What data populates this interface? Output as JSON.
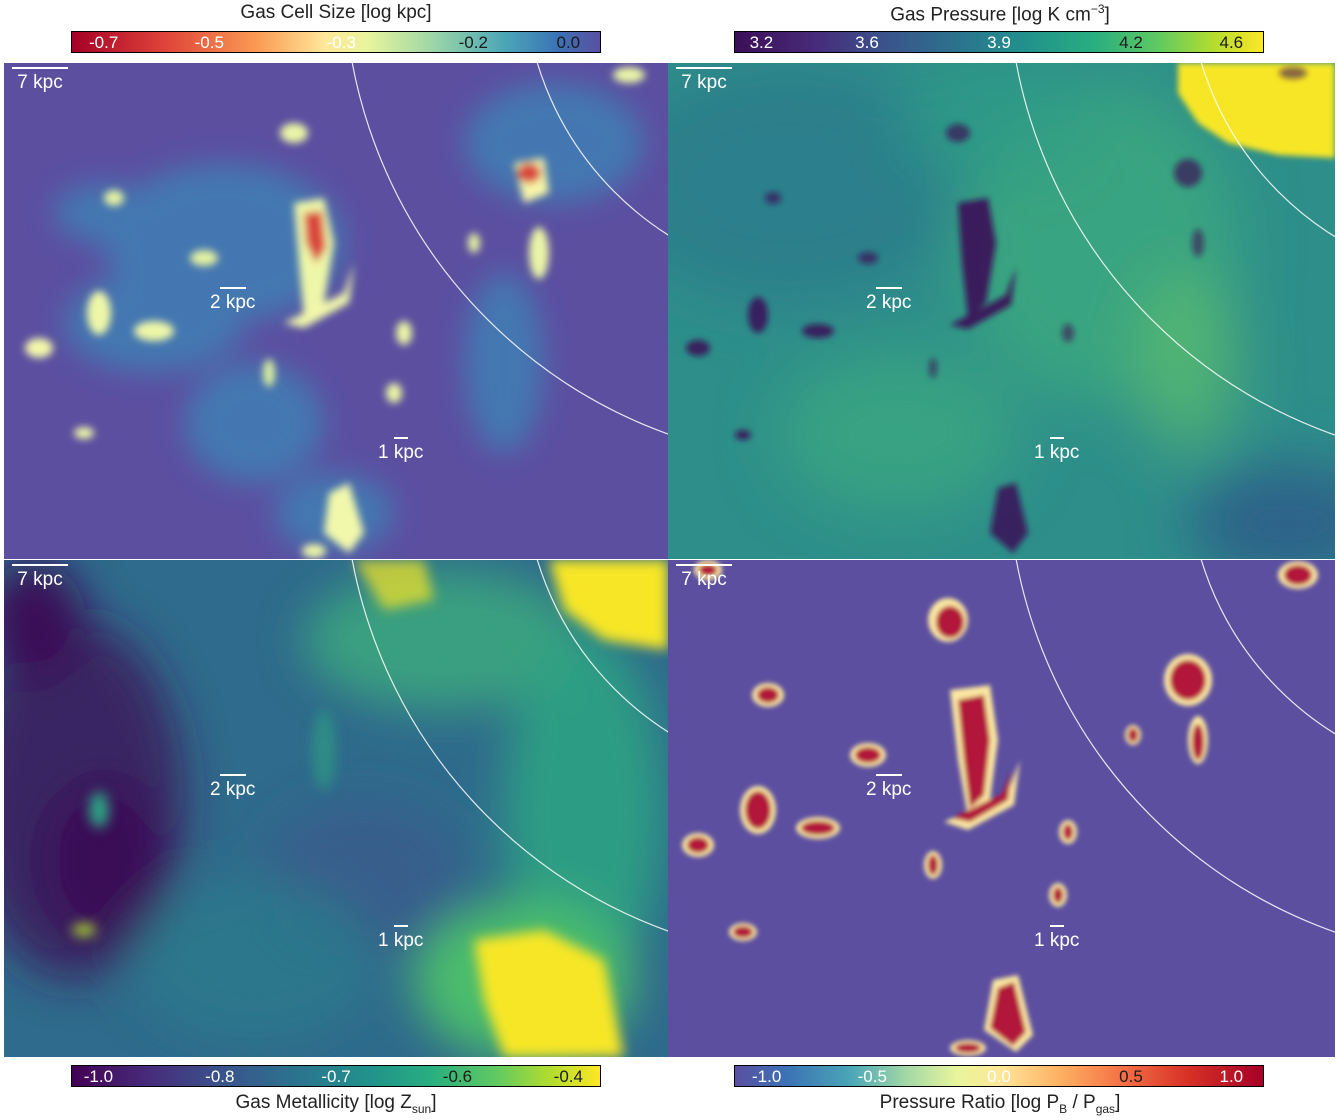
{
  "colorbars": {
    "cell_size": {
      "title": "Gas Cell Size [log kpc]",
      "ticks": [
        "-0.7",
        "-0.5",
        "-0.3",
        "-0.2",
        "0.0"
      ]
    },
    "pressure": {
      "title": "Gas Pressure [log K cm",
      "title_sup": "−3",
      "title_end": "]",
      "ticks": [
        "3.2",
        "3.6",
        "3.9",
        "4.2",
        "4.6"
      ]
    },
    "metallicity": {
      "title": "Gas Metallicity [log Z",
      "title_sub": "sun",
      "title_end": "]",
      "ticks": [
        "-1.0",
        "-0.8",
        "-0.7",
        "-0.6",
        "-0.4"
      ]
    },
    "ratio": {
      "title_a": "Pressure Ratio [log P",
      "title_sub1": "B",
      "title_b": " / P",
      "title_sub2": "gas",
      "title_end": "]",
      "ticks": [
        "-1.0",
        "-0.5",
        "0.0",
        "0.5",
        "1.0"
      ]
    }
  },
  "scale_labels": {
    "big": "7 kpc",
    "mid": "2 kpc",
    "small": "1 kpc"
  },
  "colors": {
    "viridis_bg": "#5c4fa0",
    "pressure_bg": "#2e8f8a",
    "metal_bg": "#2f6b8c",
    "yellow": "#f7e625"
  }
}
